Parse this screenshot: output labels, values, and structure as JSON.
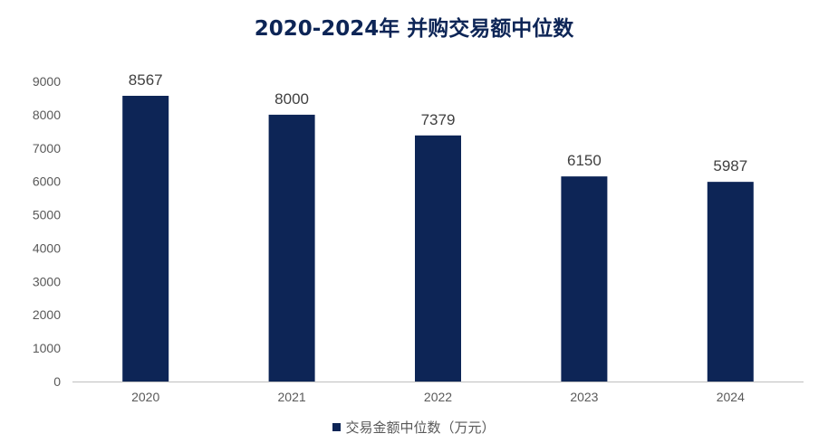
{
  "colors": {
    "bar": "#0d2556",
    "axis": "#bfbfbf",
    "title": "#0d2556"
  },
  "chart_data": {
    "type": "bar",
    "title": "2020-2024年 并购交易额中位数",
    "categories": [
      "2020",
      "2021",
      "2022",
      "2023",
      "2024"
    ],
    "series": [
      {
        "name": "交易金额中位数（万元）",
        "values": [
          8567,
          8000,
          7379,
          6150,
          5987
        ]
      }
    ],
    "ylim": [
      0,
      9000
    ],
    "yticks": [
      0,
      1000,
      2000,
      3000,
      4000,
      5000,
      6000,
      7000,
      8000,
      9000
    ],
    "grid": false,
    "legend": "bottom",
    "data_labels": true
  }
}
